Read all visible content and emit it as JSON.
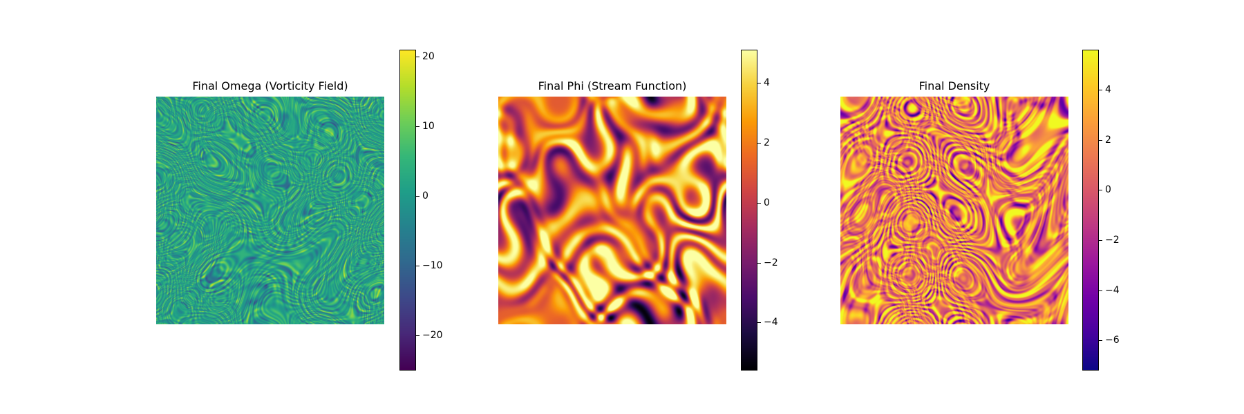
{
  "chart_data": [
    {
      "type": "heatmap",
      "title": "Final Omega (Vorticity Field)",
      "colormap": "viridis",
      "colorbar": {
        "min": -25,
        "max": 21,
        "ticks": [
          -20,
          -10,
          0,
          10,
          20
        ],
        "tick_labels": [
          "−20",
          "−10",
          "0",
          "10",
          "20"
        ]
      },
      "axes_visible": false,
      "texture": "fine-scale turbulent filaments, mostly near 0"
    },
    {
      "type": "heatmap",
      "title": "Final Phi (Stream Function)",
      "colormap": "inferno",
      "colorbar": {
        "min": -5.6,
        "max": 5.1,
        "ticks": [
          -4,
          -2,
          0,
          2,
          4
        ],
        "tick_labels": [
          "−4",
          "−2",
          "0",
          "2",
          "4"
        ]
      },
      "axes_visible": false,
      "texture": "smooth large-scale blobs"
    },
    {
      "type": "heatmap",
      "title": "Final Density",
      "colormap": "plasma",
      "colorbar": {
        "min": -7.2,
        "max": 5.6,
        "ticks": [
          -6,
          -4,
          -2,
          0,
          2,
          4
        ],
        "tick_labels": [
          "−6",
          "−4",
          "−2",
          "0",
          "2",
          "4"
        ]
      },
      "axes_visible": false,
      "texture": "swirling medium-scale structures"
    }
  ]
}
